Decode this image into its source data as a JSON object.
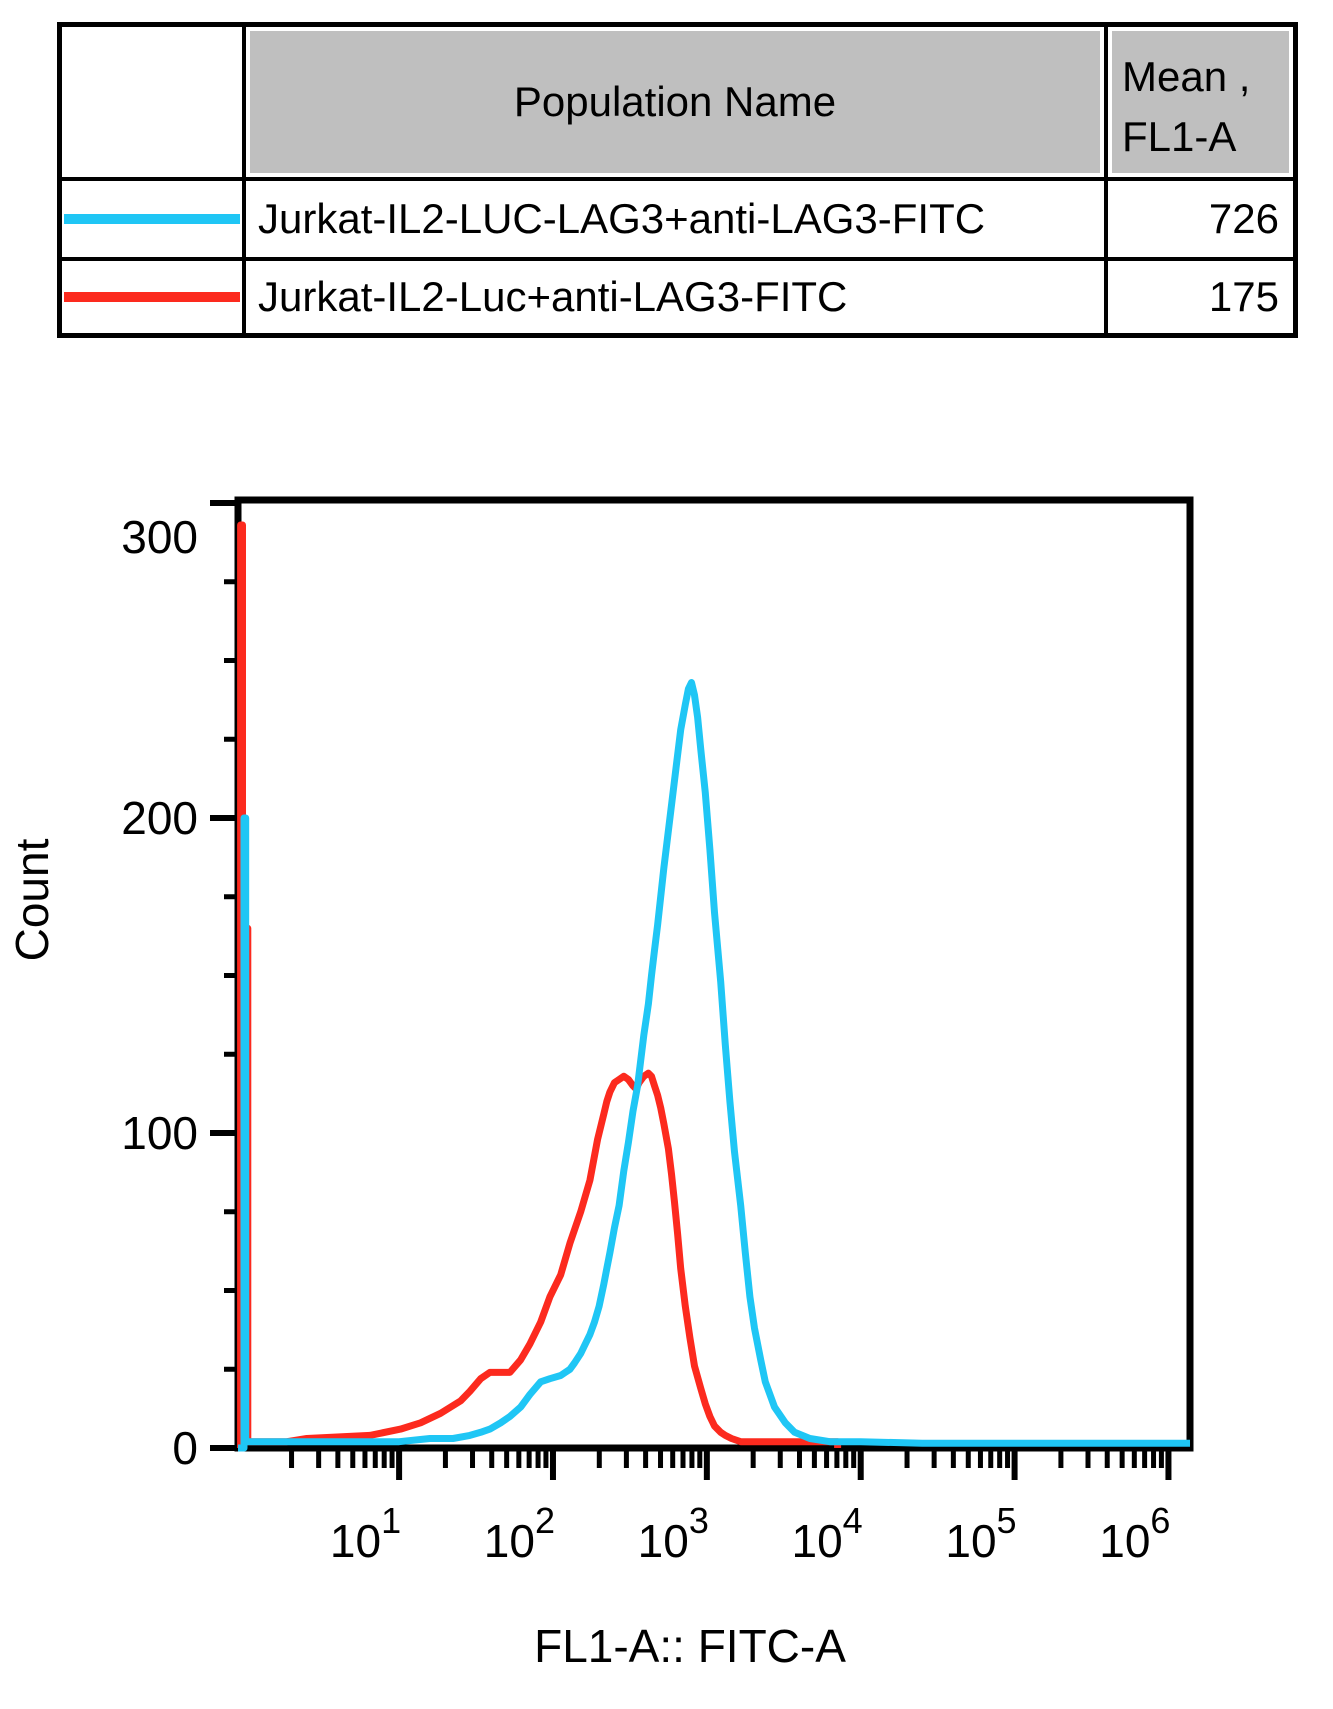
{
  "table": {
    "header": {
      "population": "Population Name",
      "mean_line1": "Mean ,",
      "mean_line2": "FL1-A"
    },
    "rows": [
      {
        "swatch": "cyan-line-swatch",
        "population": "Jurkat-IL2-LUC-LAG3+anti-LAG3-FITC",
        "mean": "726",
        "color": "#1fc6f5"
      },
      {
        "swatch": "red-line-swatch",
        "population": "Jurkat-IL2-Luc+anti-LAG3-FITC",
        "mean": "175",
        "color": "#fc2a1e"
      }
    ]
  },
  "chart_data": {
    "type": "line",
    "subtype": "flow-cytometry-histogram-overlay",
    "title": "",
    "xlabel": "FL1-A:: FITC-A",
    "ylabel": "Count",
    "x_scale": "log10",
    "xlim_log": [
      -0.047,
      6.14
    ],
    "ylim": [
      0,
      300
    ],
    "y_major_ticks": [
      0,
      100,
      200,
      300
    ],
    "y_minor_step": 25,
    "y_top_label_offset": 34,
    "x_decades": [
      1,
      2,
      3,
      4,
      5,
      6
    ],
    "x_tick_label_base": "10",
    "grid": false,
    "legend_position": "table-top",
    "series": [
      {
        "name": "Jurkat-IL2-LUC-LAG3+anti-LAG3-FITC",
        "color": "#1fc6f5",
        "mean_fl1a": 726,
        "peak": {
          "x_log": 2.9,
          "count": 243
        },
        "points": [
          [
            -0.047,
            0
          ],
          [
            -0.008,
            0
          ],
          [
            -0.008,
            200
          ],
          [
            0.003,
            200
          ],
          [
            0.003,
            2
          ],
          [
            0.5,
            2
          ],
          [
            1.0,
            2
          ],
          [
            1.2,
            3
          ],
          [
            1.35,
            3
          ],
          [
            1.46,
            4
          ],
          [
            1.53,
            5
          ],
          [
            1.59,
            6
          ],
          [
            1.66,
            8
          ],
          [
            1.72,
            10
          ],
          [
            1.79,
            13
          ],
          [
            1.85,
            17
          ],
          [
            1.92,
            21
          ],
          [
            1.98,
            22
          ],
          [
            2.05,
            23
          ],
          [
            2.08,
            24
          ],
          [
            2.11,
            25
          ],
          [
            2.14,
            27
          ],
          [
            2.18,
            30
          ],
          [
            2.21,
            33
          ],
          [
            2.24,
            36
          ],
          [
            2.27,
            40
          ],
          [
            2.3,
            45
          ],
          [
            2.33,
            52
          ],
          [
            2.35,
            57
          ],
          [
            2.37,
            62
          ],
          [
            2.4,
            70
          ],
          [
            2.43,
            77
          ],
          [
            2.46,
            88
          ],
          [
            2.49,
            97
          ],
          [
            2.52,
            107
          ],
          [
            2.55,
            115
          ],
          [
            2.57,
            123
          ],
          [
            2.59,
            131
          ],
          [
            2.62,
            141
          ],
          [
            2.64,
            150
          ],
          [
            2.66,
            158
          ],
          [
            2.68,
            166
          ],
          [
            2.7,
            175
          ],
          [
            2.72,
            184
          ],
          [
            2.75,
            196
          ],
          [
            2.78,
            208
          ],
          [
            2.81,
            220
          ],
          [
            2.83,
            228
          ],
          [
            2.86,
            236
          ],
          [
            2.88,
            241
          ],
          [
            2.9,
            243
          ],
          [
            2.92,
            239
          ],
          [
            2.94,
            232
          ],
          [
            2.96,
            222
          ],
          [
            2.99,
            208
          ],
          [
            3.02,
            190
          ],
          [
            3.05,
            170
          ],
          [
            3.09,
            148
          ],
          [
            3.12,
            128
          ],
          [
            3.15,
            110
          ],
          [
            3.18,
            94
          ],
          [
            3.22,
            77
          ],
          [
            3.25,
            62
          ],
          [
            3.28,
            48
          ],
          [
            3.31,
            38
          ],
          [
            3.35,
            28
          ],
          [
            3.38,
            21
          ],
          [
            3.44,
            13
          ],
          [
            3.51,
            8
          ],
          [
            3.57,
            5
          ],
          [
            3.67,
            3
          ],
          [
            3.8,
            2
          ],
          [
            4.0,
            2
          ],
          [
            4.4,
            1.5
          ],
          [
            5.0,
            1.5
          ],
          [
            5.6,
            1.5
          ],
          [
            6.14,
            1.5
          ]
        ]
      },
      {
        "name": "Jurkat-IL2-Luc+anti-LAG3-FITC",
        "color": "#fc2a1e",
        "mean_fl1a": 175,
        "peak": {
          "x_log": 2.62,
          "count": 119
        },
        "points": [
          [
            -0.047,
            0
          ],
          [
            -0.03,
            0
          ],
          [
            -0.03,
            293
          ],
          [
            -0.018,
            293
          ],
          [
            -0.018,
            2
          ],
          [
            0.0,
            2
          ],
          [
            0.005,
            165
          ],
          [
            0.017,
            165
          ],
          [
            0.017,
            2
          ],
          [
            0.27,
            2
          ],
          [
            0.4,
            3
          ],
          [
            0.81,
            4
          ],
          [
            1.01,
            6
          ],
          [
            1.14,
            8
          ],
          [
            1.27,
            11
          ],
          [
            1.4,
            15
          ],
          [
            1.46,
            18
          ],
          [
            1.53,
            22
          ],
          [
            1.59,
            24
          ],
          [
            1.72,
            24
          ],
          [
            1.79,
            28
          ],
          [
            1.85,
            33
          ],
          [
            1.92,
            40
          ],
          [
            1.98,
            48
          ],
          [
            2.05,
            55
          ],
          [
            2.11,
            65
          ],
          [
            2.18,
            75
          ],
          [
            2.24,
            85
          ],
          [
            2.29,
            98
          ],
          [
            2.33,
            106
          ],
          [
            2.35,
            110
          ],
          [
            2.37,
            113
          ],
          [
            2.4,
            116
          ],
          [
            2.43,
            117
          ],
          [
            2.46,
            118
          ],
          [
            2.49,
            117
          ],
          [
            2.52,
            115
          ],
          [
            2.54,
            114
          ],
          [
            2.56,
            116
          ],
          [
            2.59,
            118
          ],
          [
            2.62,
            119
          ],
          [
            2.64,
            118
          ],
          [
            2.66,
            115
          ],
          [
            2.68,
            112
          ],
          [
            2.7,
            108
          ],
          [
            2.72,
            103
          ],
          [
            2.75,
            95
          ],
          [
            2.77,
            87
          ],
          [
            2.79,
            78
          ],
          [
            2.81,
            68
          ],
          [
            2.83,
            57
          ],
          [
            2.86,
            45
          ],
          [
            2.89,
            35
          ],
          [
            2.92,
            26
          ],
          [
            2.96,
            19
          ],
          [
            2.99,
            14
          ],
          [
            3.02,
            10
          ],
          [
            3.05,
            7
          ],
          [
            3.09,
            5
          ],
          [
            3.12,
            4
          ],
          [
            3.16,
            3
          ],
          [
            3.22,
            2
          ],
          [
            3.5,
            2
          ],
          [
            3.85,
            2
          ],
          [
            3.85,
            0
          ]
        ]
      }
    ]
  },
  "colors": {
    "header_gray": "#bfbfbf",
    "border_black": "#000000",
    "cyan_series": "#1fc6f5",
    "red_series": "#fc2a1e"
  }
}
